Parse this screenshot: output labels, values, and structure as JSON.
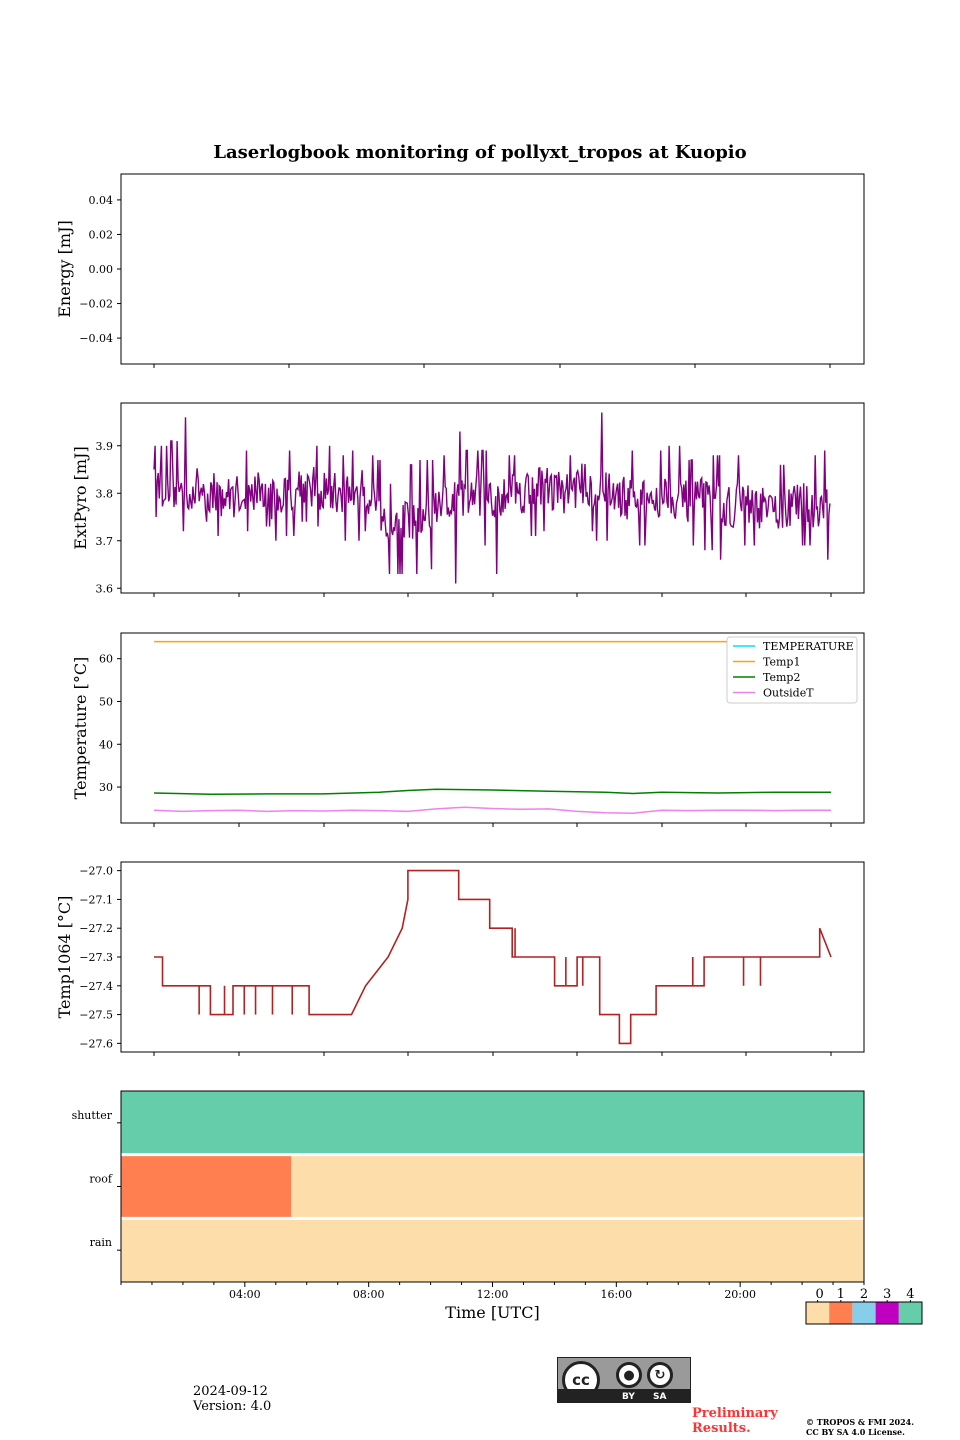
{
  "title": "Laserlogbook monitoring of pollyxt_tropos at Kuopio",
  "chart_data": [
    {
      "type": "line",
      "ylabel": "Energy [mJ]",
      "ylim": [
        -0.055,
        0.055
      ],
      "yticks": [
        0.04,
        0.02,
        0.0,
        -0.02,
        -0.04
      ],
      "ytick_labels": [
        "0.04",
        "0.02",
        "0.00",
        "−0.02",
        "−0.04"
      ],
      "xlim": [
        0,
        24
      ],
      "series": []
    },
    {
      "type": "line",
      "ylabel": "ExtPyro [mJ]",
      "ylim": [
        3.59,
        3.99
      ],
      "yticks": [
        3.9,
        3.8,
        3.7,
        3.6
      ],
      "ytick_labels": [
        "3.9",
        "3.8",
        "3.7",
        "3.6"
      ],
      "xlim": [
        -1.2,
        24.8
      ],
      "series": [
        {
          "color": "#800080",
          "x": [
            1.0,
            1.5,
            2.0,
            2.5,
            3.0,
            3.5,
            4.0,
            4.5,
            5.0,
            5.5,
            6.0,
            6.5,
            7.0,
            7.5,
            8.0,
            8.5,
            9.0,
            9.5,
            10.0,
            10.5,
            11.0,
            11.5,
            12.0,
            12.5,
            13.0,
            13.5,
            14.0,
            14.5,
            15.0,
            15.5,
            16.0,
            16.5,
            17.0,
            17.5,
            18.0,
            18.5,
            19.0,
            19.5,
            20.0,
            20.5,
            21.0,
            21.5,
            22.0,
            22.5,
            23.0,
            23.5,
            24.0
          ],
          "mean": [
            3.82,
            3.81,
            3.8,
            3.81,
            3.8,
            3.79,
            3.8,
            3.81,
            3.79,
            3.8,
            3.82,
            3.81,
            3.8,
            3.8,
            3.81,
            3.79,
            3.72,
            3.74,
            3.73,
            3.76,
            3.78,
            3.79,
            3.8,
            3.78,
            3.81,
            3.8,
            3.82,
            3.81,
            3.8,
            3.82,
            3.81,
            3.8,
            3.79,
            3.78,
            3.79,
            3.8,
            3.78,
            3.79,
            3.78,
            3.77,
            3.78,
            3.77,
            3.76,
            3.77,
            3.78,
            3.77,
            3.78
          ],
          "high": [
            3.9,
            3.91,
            3.96,
            3.88,
            3.9,
            3.89,
            3.89,
            3.87,
            3.88,
            3.89,
            3.91,
            3.9,
            3.88,
            3.89,
            3.88,
            3.87,
            3.82,
            3.86,
            3.87,
            3.88,
            3.93,
            3.89,
            3.89,
            3.9,
            3.88,
            3.91,
            3.9,
            3.89,
            3.88,
            3.95,
            3.97,
            3.95,
            3.89,
            3.88,
            3.89,
            3.9,
            3.87,
            3.88,
            3.88,
            3.88,
            3.91,
            3.86,
            3.86,
            3.9,
            3.88,
            3.89,
            3.89
          ],
          "low": [
            3.75,
            3.74,
            3.72,
            3.74,
            3.71,
            3.68,
            3.72,
            3.73,
            3.7,
            3.71,
            3.74,
            3.73,
            3.72,
            3.7,
            3.72,
            3.7,
            3.63,
            3.63,
            3.64,
            3.62,
            3.61,
            3.66,
            3.69,
            3.63,
            3.68,
            3.71,
            3.72,
            3.71,
            3.7,
            3.72,
            3.7,
            3.71,
            3.7,
            3.69,
            3.68,
            3.7,
            3.69,
            3.68,
            3.66,
            3.65,
            3.69,
            3.67,
            3.67,
            3.66,
            3.69,
            3.66,
            3.72
          ]
        }
      ]
    },
    {
      "type": "line",
      "ylabel": "Temperature [°C]",
      "ylim": [
        21.6,
        66.0
      ],
      "yticks": [
        60,
        50,
        40,
        30
      ],
      "ytick_labels": [
        "60",
        "50",
        "40",
        "30"
      ],
      "xlim": [
        -1.2,
        24.8
      ],
      "legend": {
        "placement": "upper-right",
        "entries": [
          "TEMPERATURE",
          "Temp1",
          "Temp2",
          "OutsideT"
        ]
      },
      "series": [
        {
          "name": "TEMPERATURE",
          "color": "#00e5ee",
          "x": [],
          "y": []
        },
        {
          "name": "Temp1",
          "color": "#ffa500",
          "x": [
            0,
            24
          ],
          "y": [
            64,
            64
          ]
        },
        {
          "name": "Temp2",
          "color": "#008000",
          "x": [
            0,
            2,
            4,
            6,
            8,
            9,
            10,
            12,
            14,
            16,
            17,
            18,
            20,
            22,
            24
          ],
          "y": [
            28.6,
            28.3,
            28.4,
            28.4,
            28.8,
            29.2,
            29.5,
            29.3,
            29.0,
            28.8,
            28.5,
            28.8,
            28.6,
            28.8,
            28.8
          ]
        },
        {
          "name": "OutsideT",
          "color": "#ee82ee",
          "x": [
            0,
            1,
            2,
            3,
            4,
            5,
            6,
            7,
            8,
            9,
            10,
            11,
            12,
            13,
            14,
            15,
            16,
            17,
            18,
            19,
            20,
            21,
            22,
            23,
            24
          ],
          "y": [
            24.6,
            24.3,
            24.5,
            24.6,
            24.3,
            24.5,
            24.4,
            24.6,
            24.5,
            24.3,
            24.9,
            25.3,
            25.0,
            24.8,
            24.9,
            24.3,
            24.0,
            23.9,
            24.6,
            24.5,
            24.6,
            24.6,
            24.5,
            24.6,
            24.6
          ]
        }
      ]
    },
    {
      "type": "line",
      "ylabel": "Temp1064 [°C]",
      "ylim": [
        -27.63,
        26.97
      ],
      "yticks": [
        -27.0,
        -27.1,
        -27.2,
        -27.3,
        -27.4,
        -27.5,
        -27.6
      ],
      "ytick_labels": [
        "−27.0",
        "−27.1",
        "−27.2",
        "−27.3",
        "−27.4",
        "−27.5",
        "−27.6"
      ],
      "xlim": [
        -1.2,
        24.8
      ],
      "series": [
        {
          "color": "#b22222",
          "x": [
            0,
            0.3,
            0.3,
            2.0,
            2.0,
            2.8,
            2.8,
            5.5,
            5.5,
            7.0,
            7.5,
            7.5,
            8.3,
            8.3,
            8.8,
            8.8,
            9.0,
            9.0,
            10.8,
            10.8,
            11.9,
            11.9,
            12.7,
            12.7,
            14.2,
            14.2,
            15.0,
            15.0,
            15.8,
            15.8,
            16.5,
            16.5,
            16.9,
            16.9,
            17.8,
            17.8,
            19.5,
            19.5,
            20.5,
            20.5,
            23.6,
            23.6,
            24.0
          ],
          "y": [
            -27.3,
            -27.3,
            -27.4,
            -27.4,
            -27.5,
            -27.5,
            -27.4,
            -27.4,
            -27.5,
            -27.5,
            -27.4,
            -27.4,
            -27.3,
            -27.3,
            -27.2,
            -27.2,
            -27.1,
            -27.0,
            -27.0,
            -27.1,
            -27.1,
            -27.2,
            -27.2,
            -27.3,
            -27.3,
            -27.4,
            -27.4,
            -27.3,
            -27.3,
            -27.5,
            -27.5,
            -27.6,
            -27.6,
            -27.5,
            -27.5,
            -27.4,
            -27.4,
            -27.3,
            -27.3,
            -27.3,
            -27.3,
            -27.2,
            -27.3
          ]
        }
      ]
    },
    {
      "type": "heatmap",
      "rows": [
        "shutter",
        "roof",
        "rain"
      ],
      "xlabel": "Time [UTC]",
      "xticks": [
        "04:00",
        "08:00",
        "12:00",
        "16:00",
        "20:00"
      ],
      "xtick_values": [
        4,
        8,
        12,
        16,
        20
      ],
      "xlim": [
        0,
        24
      ],
      "segments": {
        "shutter": [
          {
            "start": 0,
            "end": 24,
            "value": 4
          }
        ],
        "roof": [
          {
            "start": 0,
            "end": 5.5,
            "value": 1
          },
          {
            "start": 5.5,
            "end": 24,
            "value": 0
          }
        ],
        "rain": [
          {
            "start": 0,
            "end": 24,
            "value": 0
          }
        ]
      },
      "colorbar": {
        "labels": [
          "0",
          "1",
          "2",
          "3",
          "4"
        ],
        "colors": [
          "#fdddaa",
          "#ff7f50",
          "#87ceeb",
          "#c000c0",
          "#66cdaa"
        ]
      }
    }
  ],
  "footer": {
    "date": "2024-09-12",
    "version": "Version: 4.0",
    "badge_by": "BY",
    "badge_sa": "SA",
    "badge_cc": "cc",
    "preliminary_1": "Preliminary",
    "preliminary_2": "Results.",
    "copyright_1": "© TROPOS & FMI 2024.",
    "copyright_2": "CC BY SA 4.0 License."
  }
}
